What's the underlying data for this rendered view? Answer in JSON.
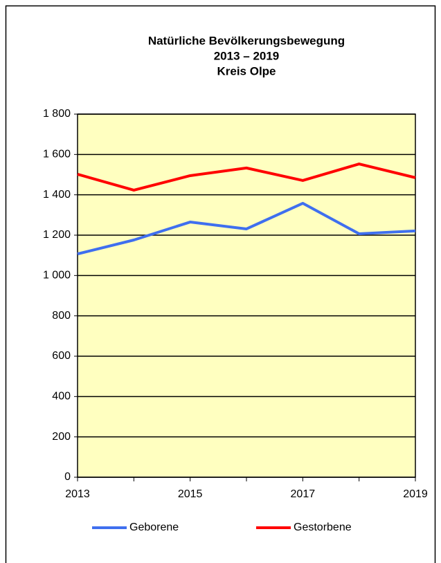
{
  "chart_data": {
    "type": "line",
    "title": [
      "Natürliche Bevölkerungsbewegung",
      "2013 – 2019",
      "Kreis Olpe"
    ],
    "x": [
      2013,
      2014,
      2015,
      2016,
      2017,
      2018,
      2019
    ],
    "xlim": [
      2013,
      2019
    ],
    "xticks": [
      2013,
      2015,
      2017,
      2019
    ],
    "ylim": [
      0,
      1800
    ],
    "yticks": [
      0,
      200,
      400,
      600,
      800,
      {
        "value": 1000,
        "label": "1 000"
      },
      {
        "value": 1200,
        "label": "1 200"
      },
      {
        "value": 1400,
        "label": "1 400"
      },
      {
        "value": 1600,
        "label": "1 600"
      },
      {
        "value": 1800,
        "label": "1 800"
      }
    ],
    "grid": true,
    "legend": "bottom",
    "series": [
      {
        "name": "Geborene",
        "color": "#3f6fef",
        "values": [
          1107,
          1176,
          1265,
          1231,
          1358,
          1207,
          1221
        ]
      },
      {
        "name": "Gestorbene",
        "color": "#ff0000",
        "values": [
          1502,
          1423,
          1495,
          1533,
          1471,
          1553,
          1485
        ]
      }
    ]
  }
}
